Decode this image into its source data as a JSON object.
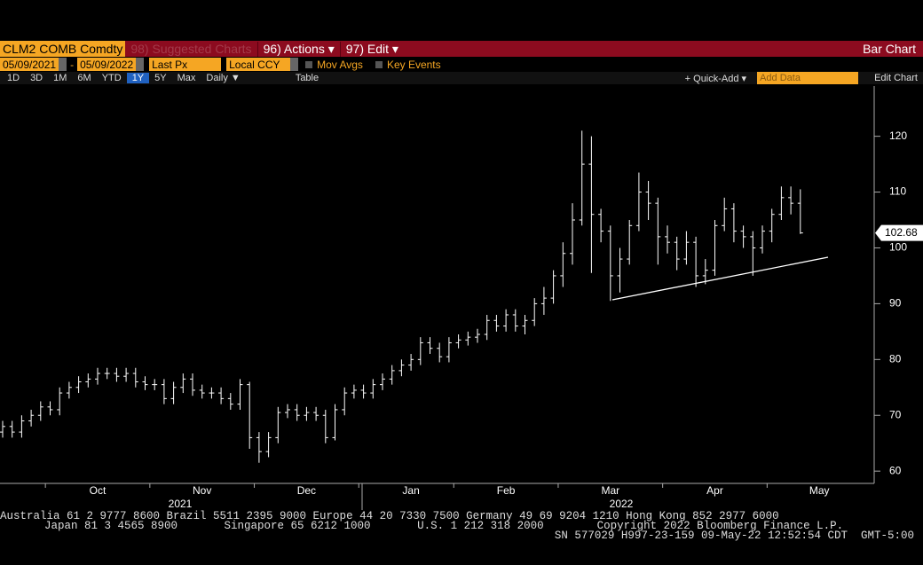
{
  "toolbar": {
    "ticker": "CLM2 COMB Comdty",
    "suggested": "98) Suggested Charts",
    "actions": "96) Actions ▾",
    "edit": "97) Edit ▾",
    "chart_kind": "Bar Chart",
    "start_date": "05/09/2021",
    "dash": "-",
    "end_date": "05/09/2022",
    "field": "Last Px",
    "currency": "Local CCY",
    "mov_avgs": "Mov Avgs",
    "key_events": "Key Events",
    "periods": [
      "1D",
      "3D",
      "1M",
      "6M",
      "YTD",
      "1Y",
      "5Y",
      "Max"
    ],
    "frequency": "Daily ▼",
    "table": "Table",
    "quick_add": "+ Quick-Add ▾",
    "add_data": "Add Data",
    "edit_chart": "Edit Chart"
  },
  "chart_data": {
    "type": "ohlc",
    "color": "#ffffff",
    "categories": [
      null,
      null,
      null,
      null,
      null,
      null,
      null,
      null,
      null,
      null,
      "Oct",
      null,
      null,
      null,
      null,
      null,
      null,
      null,
      null,
      null,
      null,
      "Nov",
      null,
      null,
      null,
      null,
      null,
      null,
      null,
      null,
      null,
      null,
      "Dec",
      null,
      null,
      null,
      null,
      null,
      null,
      null,
      null,
      null,
      null,
      "Jan",
      null,
      null,
      null,
      null,
      null,
      null,
      null,
      null,
      null,
      "Feb",
      null,
      null,
      null,
      null,
      null,
      null,
      null,
      null,
      null,
      null,
      "Mar",
      null,
      null,
      null,
      null,
      null,
      null,
      null,
      null,
      null,
      null,
      "Apr",
      null,
      null,
      null,
      null,
      null,
      null,
      null,
      null,
      null,
      null,
      "May",
      null
    ],
    "open": [
      67,
      68,
      67,
      69,
      70,
      71.5,
      71,
      74,
      75,
      76,
      76.5,
      77.5,
      77.5,
      77,
      77.5,
      76,
      75.5,
      75.5,
      73,
      75,
      76.5,
      74.5,
      74,
      74,
      73,
      72,
      75.5,
      66,
      63.5,
      66,
      70.5,
      71,
      70,
      70.5,
      70,
      66,
      71,
      74,
      74.5,
      74,
      75.5,
      76.5,
      78,
      79,
      80,
      83,
      82,
      80.5,
      83,
      83.5,
      84,
      84.5,
      87,
      86,
      88,
      86,
      87,
      90,
      91,
      95,
      99,
      105,
      115,
      106,
      103,
      95,
      98,
      104,
      110,
      108,
      102,
      101,
      98,
      101,
      95,
      96,
      104,
      107,
      103,
      102,
      100,
      103,
      106,
      109,
      108,
      null,
      null,
      null
    ],
    "high": [
      69,
      69,
      70,
      71,
      72.5,
      72.5,
      75,
      76,
      77,
      77.5,
      78.5,
      78.5,
      78.5,
      78.5,
      78.5,
      77,
      76.5,
      76.5,
      76,
      77.5,
      77.5,
      75.5,
      75,
      75,
      74,
      76.5,
      76,
      67,
      67,
      71.5,
      72,
      72,
      71.5,
      71.5,
      71,
      72,
      75,
      75.5,
      75.5,
      76.5,
      77.5,
      79,
      80,
      81,
      84,
      84,
      83,
      84,
      84.5,
      85,
      85.5,
      88,
      88,
      89,
      89,
      88,
      91,
      93,
      96,
      101,
      108,
      121,
      120,
      107,
      104,
      100,
      105,
      113.5,
      112,
      109,
      104,
      102,
      103,
      102,
      98,
      105,
      109,
      108,
      104,
      103,
      104,
      107,
      111,
      111,
      110.5,
      null,
      null,
      null
    ],
    "low": [
      66,
      66,
      66,
      68,
      69,
      70,
      70,
      73,
      74,
      75,
      75.5,
      76.5,
      76,
      76,
      75,
      74.5,
      74.5,
      72,
      72,
      74,
      73.5,
      73,
      73,
      72,
      71,
      71,
      64,
      61.5,
      62.5,
      65,
      69.5,
      69,
      69,
      69,
      65,
      65.5,
      70,
      73,
      73,
      73,
      74.5,
      75.5,
      77,
      78,
      79,
      81,
      79.5,
      79.5,
      82,
      82.5,
      83,
      83.5,
      85,
      85,
      85,
      84.5,
      86,
      88,
      90,
      93,
      97,
      104,
      95.5,
      101,
      90.5,
      92,
      97,
      103,
      105,
      97,
      99,
      96,
      97,
      93,
      93.5,
      95,
      103,
      101,
      100,
      95,
      99,
      101,
      105,
      106,
      102.5,
      null,
      null,
      null
    ],
    "close": [
      68,
      67,
      69,
      70,
      71.5,
      71,
      74,
      75,
      76,
      76.5,
      77.5,
      77.5,
      77,
      77.5,
      76,
      75.5,
      75.5,
      73,
      75,
      76.5,
      74.5,
      74,
      74,
      73,
      72,
      75.5,
      66,
      63.5,
      66,
      70.5,
      71,
      70,
      70.5,
      70,
      66,
      71,
      74,
      74.5,
      74,
      75.5,
      76.5,
      78,
      79,
      80,
      83,
      82,
      80.5,
      83,
      83.5,
      84,
      84.5,
      87,
      86,
      88,
      86,
      87,
      90,
      91,
      95,
      99,
      105,
      115,
      106,
      103,
      95,
      98,
      104,
      110,
      108,
      102,
      101,
      98,
      101,
      95,
      96,
      104,
      107,
      103,
      102,
      100,
      103,
      106,
      109,
      108,
      102.68,
      null,
      null,
      null
    ],
    "last_price": 102.68,
    "year_labels": [
      "2021",
      "2022"
    ],
    "ylim": [
      57.8,
      129
    ],
    "yticks": [
      60,
      70,
      80,
      90,
      100,
      110,
      120
    ]
  },
  "footer": {
    "line1": "Australia 61 2 9777 8600 Brazil 5511 2395 9000 Europe 44 20 7330 7500 Germany 49 69 9204 1210 Hong Kong 852 2977 6000",
    "line2": "Japan 81 3 4565 8900       Singapore 65 6212 1000       U.S. 1 212 318 2000        Copyright 2022 Bloomberg Finance L.P.",
    "line3": "SN 577029 H997-23-159 09-May-22 12:52:54 CDT  GMT-5:00"
  }
}
